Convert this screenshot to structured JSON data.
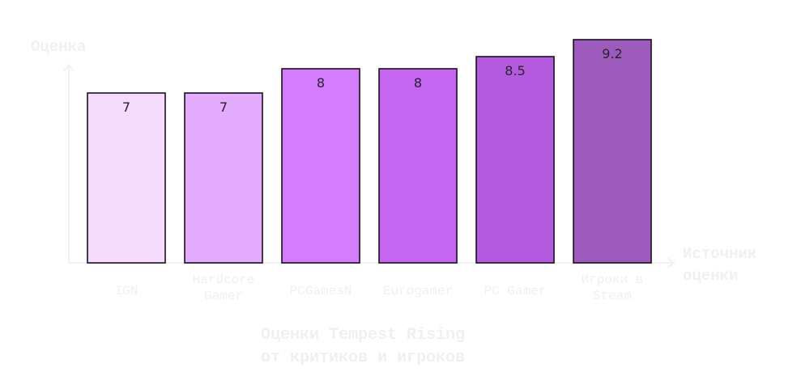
{
  "chart_data": {
    "type": "bar",
    "title": "Оценки Tempest Rising от критиков и игроков",
    "xlabel": "Источник оценки",
    "ylabel": "Оценка",
    "categories": [
      "IGN",
      "Hardcore Gamer",
      "PCGamesN",
      "Eurogamer",
      "PC Gamer",
      "Игроки в Steam"
    ],
    "values": [
      7,
      7,
      8,
      8,
      8.5,
      9.2
    ],
    "value_labels": [
      "7",
      "7",
      "8",
      "8",
      "8.5",
      "9.2"
    ],
    "bar_colors": [
      "#f5dcfc",
      "#e4acfc",
      "#d37cfc",
      "#c466f2",
      "#b25bdf",
      "#9c5bbd"
    ],
    "ylim": [
      0,
      10
    ],
    "grid": false,
    "legend": "none"
  }
}
